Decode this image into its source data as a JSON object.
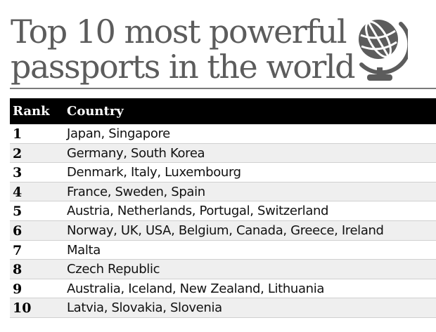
{
  "title": {
    "line1": "Top 10 most powerful",
    "line2": "passports in the world"
  },
  "icon": "globe-icon",
  "colors": {
    "title": "#5c5c5c",
    "header_bg": "#000000",
    "header_text": "#ffffff",
    "row_alt": "#efefef"
  },
  "table": {
    "headers": {
      "rank": "Rank",
      "country": "Country"
    },
    "rows": [
      {
        "rank": "1",
        "country": "Japan, Singapore"
      },
      {
        "rank": "2",
        "country": "Germany, South Korea"
      },
      {
        "rank": "3",
        "country": "Denmark, Italy, Luxembourg"
      },
      {
        "rank": "4",
        "country": "France, Sweden, Spain"
      },
      {
        "rank": "5",
        "country": "Austria, Netherlands, Portugal, Switzerland"
      },
      {
        "rank": "6",
        "country": "Norway, UK, USA,  Belgium, Canada, Greece, Ireland"
      },
      {
        "rank": "7",
        "country": "Malta"
      },
      {
        "rank": "8",
        "country": "Czech Republic"
      },
      {
        "rank": "9",
        "country": "Australia, Iceland, New Zealand, Lithuania"
      },
      {
        "rank": "10",
        "country": "Latvia, Slovakia, Slovenia"
      }
    ]
  }
}
